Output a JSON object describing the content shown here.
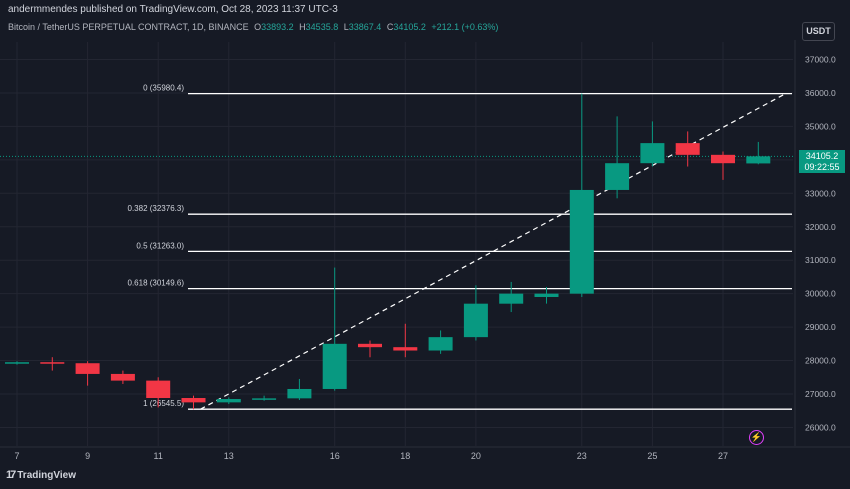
{
  "header": {
    "publisher": "andermmendes published on TradingView.com, Oct 28, 2023 11:37 UTC-3"
  },
  "symbol": {
    "title": "Bitcoin / TetherUS PERPETUAL CONTRACT, 1D, BINANCE",
    "open_label": "O",
    "open": "33893.2",
    "high_label": "H",
    "high": "34535.8",
    "low_label": "L",
    "low": "33867.4",
    "close_label": "C",
    "close": "34105.2",
    "change": "+212.1 (+0.63%)"
  },
  "currency_button": "USDT",
  "price_tag": {
    "price": "34105.2",
    "countdown": "09:22:55"
  },
  "brand": {
    "logo": "17",
    "name": "TradingView"
  },
  "colors": {
    "up": "#089981",
    "down": "#f23645",
    "background": "#161a25",
    "fib_line": "#ffffff",
    "price_line": "#089981",
    "alert": "#e040fb"
  },
  "chart_data": {
    "type": "candlestick",
    "y_axis_labels": [
      "37000.0",
      "36000.0",
      "35000.0",
      "34000.0",
      "33000.0",
      "32000.0",
      "31000.0",
      "30000.0",
      "29000.0",
      "28000.0",
      "27000.0",
      "26000.0"
    ],
    "ylim": [
      25500,
      37500
    ],
    "x_axis_labels": [
      "7",
      "9",
      "11",
      "13",
      "16",
      "18",
      "20",
      "23",
      "25",
      "27"
    ],
    "candles": [
      {
        "date": "Oct 7",
        "open": 27930,
        "high": 27980,
        "low": 27880,
        "close": 27950
      },
      {
        "date": "Oct 8",
        "open": 27950,
        "high": 28100,
        "low": 27700,
        "close": 27920
      },
      {
        "date": "Oct 9",
        "open": 27920,
        "high": 27980,
        "low": 27250,
        "close": 27600
      },
      {
        "date": "Oct 10",
        "open": 27600,
        "high": 27700,
        "low": 27300,
        "close": 27400
      },
      {
        "date": "Oct 11",
        "open": 27400,
        "high": 27500,
        "low": 26600,
        "close": 26880
      },
      {
        "date": "Oct 12",
        "open": 26880,
        "high": 26950,
        "low": 26545,
        "close": 26750
      },
      {
        "date": "Oct 13",
        "open": 26750,
        "high": 26900,
        "low": 26700,
        "close": 26850
      },
      {
        "date": "Oct 14",
        "open": 26850,
        "high": 26950,
        "low": 26800,
        "close": 26870
      },
      {
        "date": "Oct 15",
        "open": 26870,
        "high": 27450,
        "low": 26820,
        "close": 27150
      },
      {
        "date": "Oct 16",
        "open": 27150,
        "high": 30780,
        "low": 27100,
        "close": 28500
      },
      {
        "date": "Oct 17",
        "open": 28500,
        "high": 28600,
        "low": 28100,
        "close": 28400
      },
      {
        "date": "Oct 18",
        "open": 28400,
        "high": 29100,
        "low": 28100,
        "close": 28300
      },
      {
        "date": "Oct 19",
        "open": 28300,
        "high": 28900,
        "low": 28200,
        "close": 28700
      },
      {
        "date": "Oct 20",
        "open": 28700,
        "high": 30250,
        "low": 28600,
        "close": 29700
      },
      {
        "date": "Oct 21",
        "open": 29700,
        "high": 30350,
        "low": 29450,
        "close": 30000
      },
      {
        "date": "Oct 22",
        "open": 29900,
        "high": 30200,
        "low": 29700,
        "close": 30000
      },
      {
        "date": "Oct 23",
        "open": 30000,
        "high": 35980,
        "low": 29900,
        "close": 33100
      },
      {
        "date": "Oct 24",
        "open": 33100,
        "high": 35300,
        "low": 32850,
        "close": 33900
      },
      {
        "date": "Oct 25",
        "open": 33900,
        "high": 35150,
        "low": 33800,
        "close": 34500
      },
      {
        "date": "Oct 26",
        "open": 34500,
        "high": 34850,
        "low": 33800,
        "close": 34150
      },
      {
        "date": "Oct 27",
        "open": 34150,
        "high": 34250,
        "low": 33400,
        "close": 33900
      },
      {
        "date": "Oct 28",
        "open": 33893.2,
        "high": 34535.8,
        "low": 33867.4,
        "close": 34105.2
      }
    ],
    "fibonacci": [
      {
        "label": "0 (35980.4)",
        "price": 35980.4
      },
      {
        "label": "0.382 (32376.3)",
        "price": 32376.3
      },
      {
        "label": "0.5 (31263.0)",
        "price": 31263.0
      },
      {
        "label": "0.618 (30149.6)",
        "price": 30149.6
      },
      {
        "label": "1 (26545.5)",
        "price": 26545.5
      }
    ],
    "trend_line": {
      "from": {
        "date": "Oct 12",
        "price": 26545.5
      },
      "to": {
        "date": "Oct 29",
        "price": 35980.4
      },
      "style": "dashed"
    },
    "last_price": 34105.2,
    "grid": true
  }
}
